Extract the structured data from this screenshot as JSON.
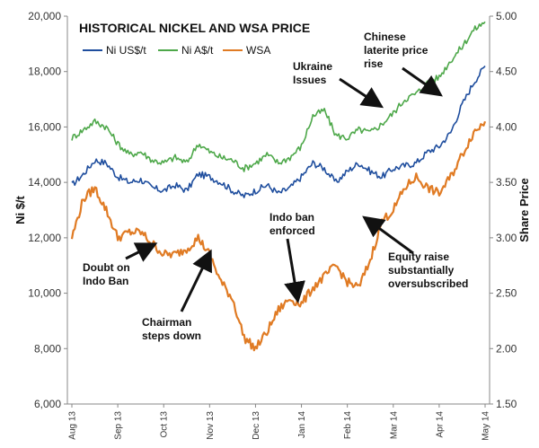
{
  "chart_data": {
    "type": "line",
    "title": "HISTORICAL NICKEL AND WSA PRICE",
    "ylabel": "Ni $/t",
    "y2label": "Share Price",
    "ylim": [
      6000,
      20000
    ],
    "y2lim": [
      1.5,
      5.0
    ],
    "yticks": [
      "6,000",
      "8,000",
      "10,000",
      "12,000",
      "14,000",
      "16,000",
      "18,000",
      "20,000"
    ],
    "y2ticks": [
      "1.50",
      "2.00",
      "2.50",
      "3.00",
      "3.50",
      "4.00",
      "4.50",
      "5.00"
    ],
    "x_labels": [
      "Aug 13",
      "Sep 13",
      "Oct 13",
      "Nov 13",
      "Dec 13",
      "Jan 14",
      "Feb 14",
      "Mar 14",
      "Apr 14",
      "May 14"
    ],
    "grid": false,
    "legend_position": "top-left",
    "series": [
      {
        "name": "Ni US$/t",
        "axis": "left",
        "color": "#1f4e9e",
        "x": [
          0,
          0.25,
          0.5,
          0.75,
          1,
          1.25,
          1.5,
          1.75,
          2,
          2.25,
          2.5,
          2.75,
          3,
          3.25,
          3.5,
          3.75,
          4,
          4.25,
          4.5,
          4.75,
          5,
          5.25,
          5.5,
          5.75,
          6,
          6.25,
          6.5,
          6.75,
          7,
          7.25,
          7.5,
          7.75,
          8,
          8.25,
          8.5,
          8.75,
          9
        ],
        "values": [
          13900,
          14300,
          14800,
          14700,
          14200,
          14000,
          14100,
          13800,
          13700,
          13900,
          13700,
          14300,
          14200,
          14000,
          13700,
          13500,
          13700,
          13900,
          13600,
          13800,
          14200,
          14700,
          14500,
          14000,
          14400,
          14700,
          14400,
          14200,
          14500,
          14600,
          14700,
          15100,
          15300,
          15800,
          16800,
          17600,
          18200
        ]
      },
      {
        "name": "Ni A$/t",
        "axis": "left",
        "color": "#4ea84a",
        "x": [
          0,
          0.25,
          0.5,
          0.75,
          1,
          1.25,
          1.5,
          1.75,
          2,
          2.25,
          2.5,
          2.75,
          3,
          3.25,
          3.5,
          3.75,
          4,
          4.25,
          4.5,
          4.75,
          5,
          5.25,
          5.5,
          5.75,
          6,
          6.25,
          6.5,
          6.75,
          7,
          7.25,
          7.5,
          7.75,
          8,
          8.25,
          8.5,
          8.75,
          9
        ],
        "values": [
          15600,
          15900,
          16200,
          16000,
          15400,
          15000,
          15100,
          14800,
          14700,
          14900,
          14700,
          15400,
          15100,
          14900,
          14800,
          14500,
          14700,
          15000,
          14700,
          14900,
          15300,
          16400,
          16600,
          15700,
          15600,
          15900,
          15800,
          16100,
          16500,
          17000,
          17200,
          17600,
          17800,
          18400,
          18900,
          19500,
          19800
        ]
      },
      {
        "name": "WSA",
        "axis": "right",
        "color": "#e07b24",
        "x": [
          0,
          0.25,
          0.5,
          0.75,
          1,
          1.25,
          1.5,
          1.75,
          2,
          2.25,
          2.5,
          2.75,
          3,
          3.25,
          3.5,
          3.75,
          4,
          4.25,
          4.5,
          4.75,
          5,
          5.25,
          5.5,
          5.75,
          6,
          6.25,
          6.5,
          6.75,
          7,
          7.25,
          7.5,
          7.75,
          8,
          8.25,
          8.5,
          8.75,
          9
        ],
        "values": [
          3.0,
          3.35,
          3.45,
          3.25,
          3.0,
          3.05,
          3.05,
          2.95,
          2.85,
          2.85,
          2.9,
          3.0,
          2.85,
          2.6,
          2.45,
          2.1,
          2.0,
          2.15,
          2.35,
          2.45,
          2.4,
          2.55,
          2.65,
          2.75,
          2.6,
          2.55,
          2.8,
          3.15,
          3.25,
          3.45,
          3.55,
          3.45,
          3.4,
          3.55,
          3.75,
          3.95,
          4.05
        ]
      }
    ],
    "annotations": [
      {
        "text": "Doubt on\nIndo Ban"
      },
      {
        "text": "Chairman\nsteps down"
      },
      {
        "text": "Indo ban\nenforced"
      },
      {
        "text": "Ukraine\nIssues"
      },
      {
        "text": "Chinese\nlaterite price\nrise"
      },
      {
        "text": "Equity raise\nsubstantially\noversubscribed"
      }
    ]
  }
}
